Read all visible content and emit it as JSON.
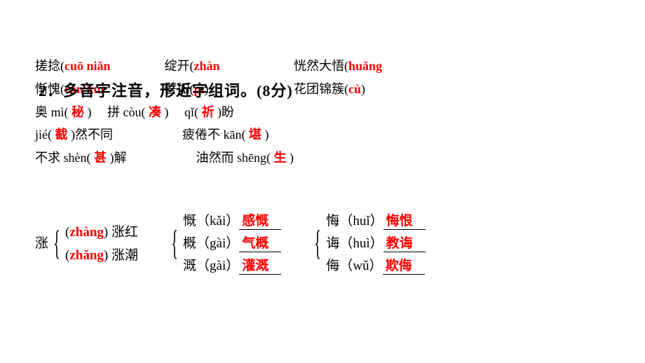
{
  "colors": {
    "text": "#000000",
    "accent": "#ff0000",
    "background": "#ffffff"
  },
  "fontsizes": {
    "body": 18,
    "title": 22,
    "lower": 19
  },
  "title": "2．多音字注音，形近字组词。(8分)",
  "line1": {
    "a_han": "搓捻(",
    "a_py": "cuō niǎn",
    "b_han": "绽开(",
    "b_py": "zhàn",
    "c_han": "恍然大悟(",
    "c_py": "huǎng"
  },
  "line2": {
    "a_han": "惭愧(",
    "a_py": "cán kuì",
    "b_han": "譬如(",
    "b_py": "pì",
    "c_han": "花团锦簇(",
    "c_py": "cù"
  },
  "line3": {
    "a": "奥 mì(",
    "a_ans": "秘",
    "b": "拼 còu(",
    "b_ans": "凑",
    "c": "qǐ(",
    "c_ans": "祈",
    "c_tail": ")盼"
  },
  "line4": {
    "a": "jié(",
    "a_ans": "截",
    "a_tail": ")然不同",
    "b": "疲倦不 kān(",
    "b_ans": "堪"
  },
  "line5": {
    "a": "不求 shèn(",
    "a_ans": "甚",
    "a_tail": ")解",
    "b": "油然而 shēng(",
    "b_ans": "生"
  },
  "zhang": {
    "char": "涨",
    "r1_py": "zhàng",
    "r1_word": "涨红",
    "r2_py": "zhǎng",
    "r2_word": "涨潮"
  },
  "colA": {
    "r1_char": "慨",
    "r1_py": "kǎi",
    "r1_ans": "感慨",
    "r2_char": "概",
    "r2_py": "gài",
    "r2_ans": "气概",
    "r3_char": "溉",
    "r3_py": "gài",
    "r3_ans": "灌溉"
  },
  "colB": {
    "r1_char": "悔",
    "r1_py": "huǐ",
    "r1_ans": "悔恨",
    "r2_char": "诲",
    "r2_py": "huì",
    "r2_ans": "教诲",
    "r3_char": "侮",
    "r3_py": "wǔ",
    "r3_ans": "欺侮"
  },
  "paren_close": ")"
}
